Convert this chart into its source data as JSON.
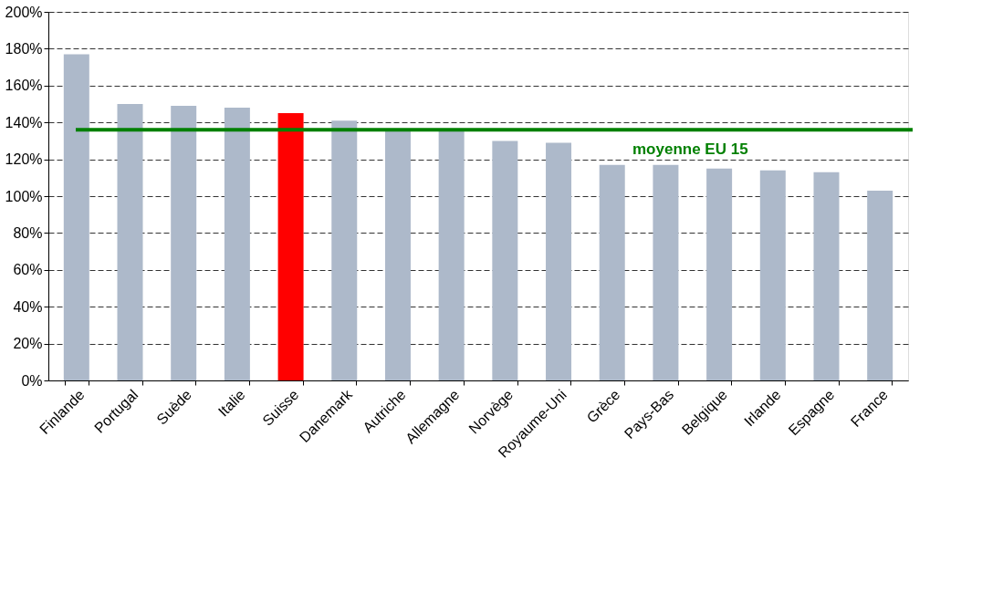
{
  "chart_data": {
    "type": "bar",
    "categories": [
      "Finlande",
      "Portugal",
      "Suède",
      "Italie",
      "Suisse",
      "Danemark",
      "Autriche",
      "Allemagne",
      "Norvège",
      "Royaume-Uni",
      "Grèce",
      "Pays-Bas",
      "Belgique",
      "Irlande",
      "Espagne",
      "France"
    ],
    "values": [
      177,
      150,
      149,
      148,
      145,
      141,
      136,
      136,
      130,
      129,
      117,
      117,
      115,
      114,
      113,
      103
    ],
    "colors": [
      "#adb9ca",
      "#adb9ca",
      "#adb9ca",
      "#adb9ca",
      "#ff0000",
      "#adb9ca",
      "#adb9ca",
      "#adb9ca",
      "#adb9ca",
      "#adb9ca",
      "#adb9ca",
      "#adb9ca",
      "#adb9ca",
      "#adb9ca",
      "#adb9ca",
      "#adb9ca"
    ],
    "ylim": [
      0,
      200
    ],
    "yticks": [
      {
        "value": 0,
        "label": "0%"
      },
      {
        "value": 20,
        "label": "20%"
      },
      {
        "value": 40,
        "label": "40%"
      },
      {
        "value": 60,
        "label": "60%"
      },
      {
        "value": 80,
        "label": "80%"
      },
      {
        "value": 100,
        "label": "100%"
      },
      {
        "value": 120,
        "label": "120%"
      },
      {
        "value": 140,
        "label": "140%"
      },
      {
        "value": 160,
        "label": "160%"
      },
      {
        "value": 180,
        "label": "180%"
      },
      {
        "value": 200,
        "label": "200%"
      }
    ],
    "ref_lines": [
      {
        "axis": "y",
        "value": 136,
        "label": "moyenne EU 15",
        "color": "#008000"
      }
    ],
    "grid": "y"
  }
}
